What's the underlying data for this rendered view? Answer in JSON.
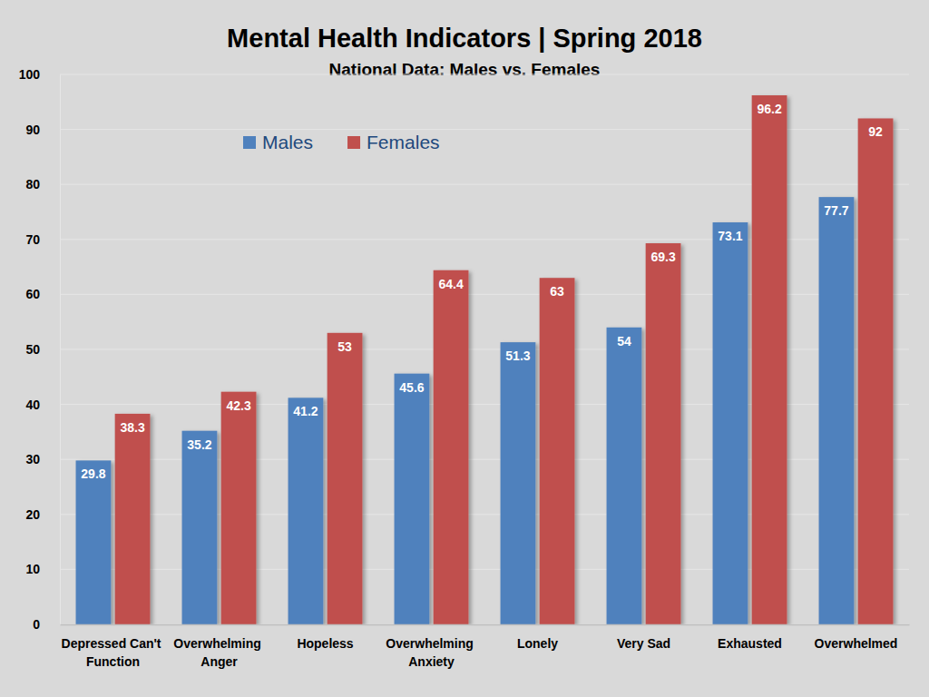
{
  "chart_data": {
    "type": "bar",
    "title": "Mental Health Indicators | Spring 2018",
    "subtitle": "National Data: Males vs. Females",
    "categories": [
      "Depressed Can't Function",
      "Overwhelming Anger",
      "Hopeless",
      "Overwhelming Anxiety",
      "Lonely",
      "Very Sad",
      "Exhausted",
      "Overwhelmed"
    ],
    "series": [
      {
        "name": "Males",
        "color": "#4f81bd",
        "values": [
          29.8,
          35.2,
          41.2,
          45.6,
          51.3,
          54,
          73.1,
          77.7
        ]
      },
      {
        "name": "Females",
        "color": "#c0504d",
        "values": [
          38.3,
          42.3,
          53,
          64.4,
          63,
          69.3,
          96.2,
          92
        ]
      }
    ],
    "ylim": [
      0,
      100
    ],
    "yticks": [
      0,
      10,
      20,
      30,
      40,
      50,
      60,
      70,
      80,
      90,
      100
    ],
    "grid": true,
    "legend": "top",
    "data_labels": true
  }
}
